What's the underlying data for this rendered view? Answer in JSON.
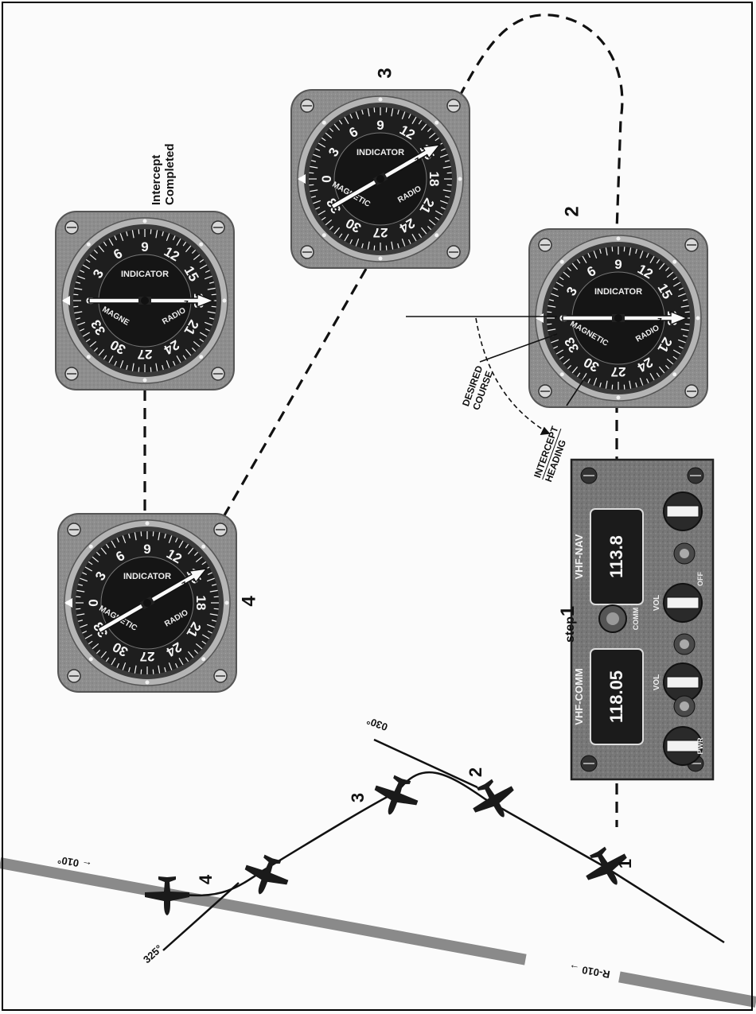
{
  "labels": {
    "intercept_completed_line1": "Intercept",
    "intercept_completed_line2": "Completed",
    "desired_course_line1": "DESIRED",
    "desired_course_line2": "COURSE",
    "intercept_heading_line1": "INTERCEPT",
    "intercept_heading_line2": "HEADING",
    "step": "step",
    "step_number": "1"
  },
  "instruments": [
    {
      "id": "indicator-4",
      "position_number": "4",
      "label_top": "MAGNETIC",
      "label_bottom": "INDICATOR",
      "label_radio": "RADIO",
      "needle": "2"
    },
    {
      "id": "indicator-3",
      "position_number": "3",
      "label_top": "MAGNETIC",
      "label_bottom": "INDICATOR",
      "label_radio": "RADIO",
      "needle": "2"
    },
    {
      "id": "indicator-2",
      "position_number": "2",
      "label_top": "MAGNETIC",
      "label_bottom": "INDICATOR",
      "label_radio": "RADIO",
      "needle": "2"
    },
    {
      "id": "indicator-completed",
      "label_top": "MAGNE",
      "label_bottom": "INDICATOR",
      "label_radio": "RADIO",
      "needle": "2"
    }
  ],
  "dial_numbers": [
    "0",
    "3",
    "6",
    "9",
    "12",
    "15",
    "18",
    "21",
    "24",
    "27",
    "30",
    "33"
  ],
  "radio_panel": {
    "comm_label": "VHF-COMM",
    "comm_freq": "118.05",
    "nav_label": "VHF-NAV",
    "nav_freq": "113.8",
    "vol_label": "VOL",
    "off_label": "OFF",
    "pwr_label": "PWR",
    "comm_small": "COMM"
  },
  "map": {
    "radial_label": "R-010",
    "heading_top": "010°",
    "heading_start": "030°",
    "heading_end": "325°",
    "aircraft_numbers": [
      "4",
      "3",
      "2",
      "1"
    ]
  },
  "colors": {
    "bezel": "#8c8c8c",
    "dial_face": "#1e1e1e",
    "radial": "#8a8a8a",
    "panel": "#6f6f6f"
  }
}
